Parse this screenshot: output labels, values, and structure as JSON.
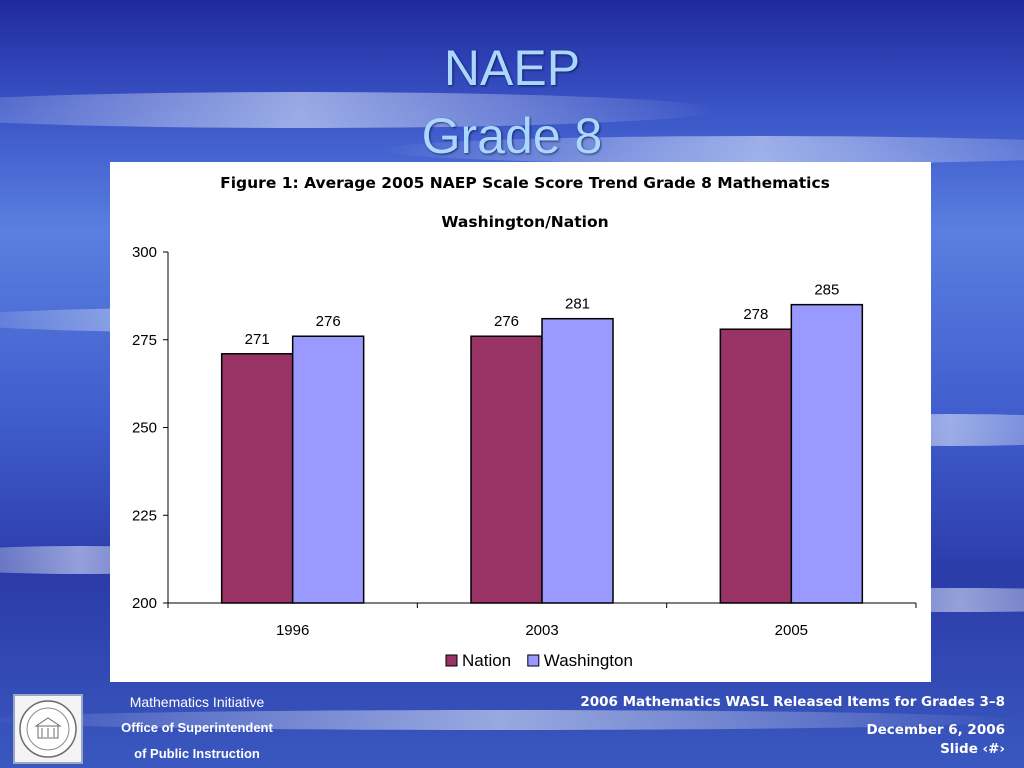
{
  "slide": {
    "title_line1": "NAEP",
    "title_line2": "Grade 8"
  },
  "footer": {
    "left_line1": "Mathematics Initiative",
    "left_line2": "Office of Superintendent",
    "left_line3": "of Public Instruction",
    "right_line1": "2006 Mathematics WASL Released Items for Grades 3–8",
    "right_line2": "December 6, 2006",
    "right_line3": "Slide ‹#›"
  },
  "colors": {
    "nation": "#993366",
    "washington": "#9999ff",
    "background_top": "#2f3fb0",
    "title": "#a9d7ff"
  },
  "chart_data": {
    "type": "bar",
    "title": "Figure 1: Average 2005 NAEP Scale Score Trend Grade 8 Mathematics",
    "subtitle": "Washington/Nation",
    "categories": [
      "1996",
      "2003",
      "2005"
    ],
    "series": [
      {
        "name": "Nation",
        "values": [
          271,
          276,
          278
        ],
        "color": "#993366"
      },
      {
        "name": "Washington",
        "values": [
          276,
          281,
          285
        ],
        "color": "#9999ff"
      }
    ],
    "ylim": [
      200,
      300
    ],
    "yticks": [
      200,
      225,
      250,
      275,
      300
    ],
    "grid": false,
    "legend_position": "bottom"
  }
}
